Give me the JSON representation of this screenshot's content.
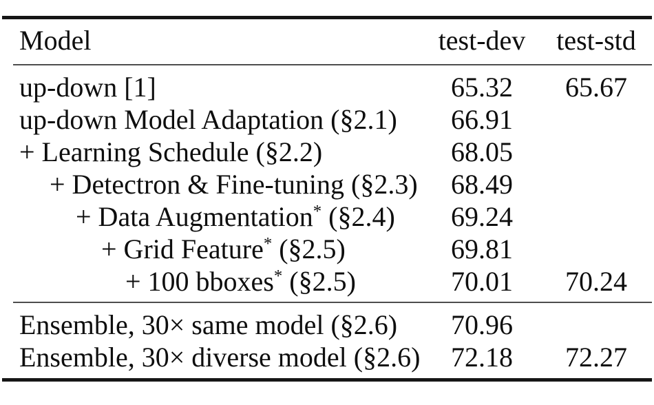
{
  "colors": {
    "page-bg": "#ffffff",
    "ink": "#0e0e0e",
    "rule-heavy": "#161616",
    "rule-light": "#4d4d4d"
  },
  "header": {
    "model": "Model",
    "test_dev": "test-dev",
    "test_std": "test-std"
  },
  "sections": [
    {
      "rows": [
        {
          "pre": "up-down [1]",
          "sup": "",
          "post": "",
          "indent": 0,
          "test_dev": "65.32",
          "test_std": "65.67"
        },
        {
          "pre": "up-down Model Adaptation (§2.1)",
          "sup": "",
          "post": "",
          "indent": 0,
          "test_dev": "66.91",
          "test_std": ""
        },
        {
          "pre": "+ Learning Schedule (§2.2)",
          "sup": "",
          "post": "",
          "indent": 0,
          "test_dev": "68.05",
          "test_std": ""
        },
        {
          "pre": "+ Detectron & Fine-tuning (§2.3)",
          "sup": "",
          "post": "",
          "indent": 1,
          "test_dev": "68.49",
          "test_std": ""
        },
        {
          "pre": "+ Data Augmentation",
          "sup": "*",
          "post": " (§2.4)",
          "indent": 2,
          "test_dev": "69.24",
          "test_std": ""
        },
        {
          "pre": "+ Grid Feature",
          "sup": "*",
          "post": " (§2.5)",
          "indent": 3,
          "test_dev": "69.81",
          "test_std": ""
        },
        {
          "pre": "+ 100 bboxes",
          "sup": "*",
          "post": " (§2.5)",
          "indent": 4,
          "test_dev": "70.01",
          "test_std": "70.24"
        }
      ]
    },
    {
      "rows": [
        {
          "pre": "Ensemble, 30× same model (§2.6)",
          "sup": "",
          "post": "",
          "indent": 0,
          "test_dev": "70.96",
          "test_std": ""
        },
        {
          "pre": "Ensemble, 30× diverse model (§2.6)",
          "sup": "",
          "post": "",
          "indent": 0,
          "test_dev": "72.18",
          "test_std": "72.27"
        }
      ]
    }
  ]
}
